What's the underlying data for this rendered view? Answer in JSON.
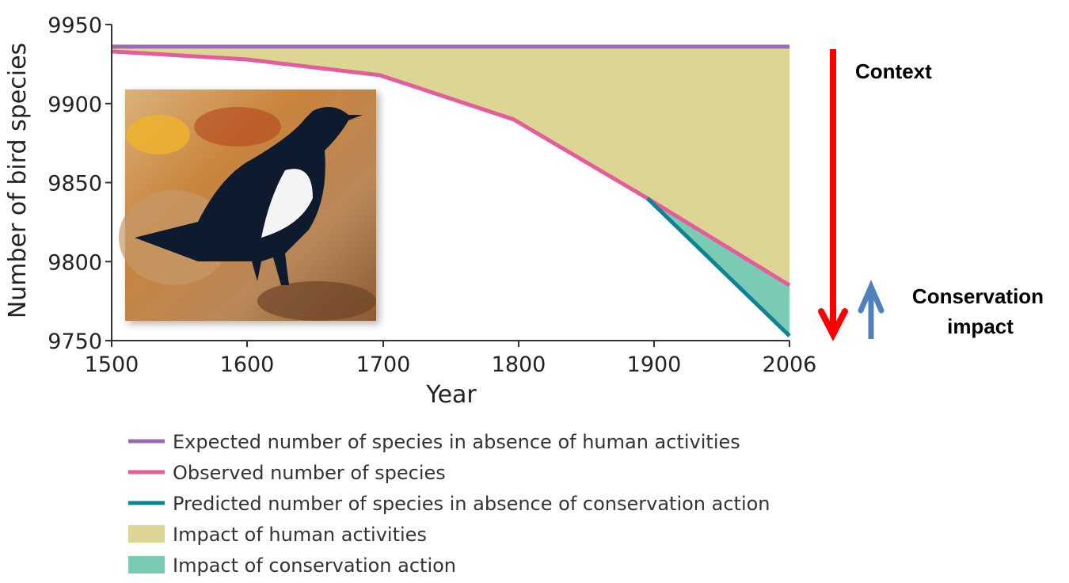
{
  "chart_data": {
    "type": "area",
    "title": "",
    "xlabel": "Year",
    "ylabel": "Number of bird species",
    "xlim": [
      1500,
      2006
    ],
    "ylim": [
      9750,
      9950
    ],
    "x_ticks": [
      1500,
      1600,
      1700,
      1800,
      1900,
      2006
    ],
    "y_ticks": [
      9750,
      9800,
      9850,
      9900,
      9950
    ],
    "grid": false,
    "series": [
      {
        "name": "Expected number of species in absence of human activities",
        "kind": "line",
        "color": "#9b6bb0",
        "x": [
          1500,
          2006
        ],
        "values": [
          9936,
          9936
        ]
      },
      {
        "name": "Observed number of species",
        "kind": "line",
        "color": "#e35d9c",
        "x": [
          1500,
          1600,
          1700,
          1800,
          1900,
          2006
        ],
        "values": [
          9933,
          9928,
          9918,
          9890,
          9840,
          9785
        ]
      },
      {
        "name": "Predicted number of species in absence of conservation action",
        "kind": "line",
        "color": "#0f8394",
        "x": [
          1900,
          2006
        ],
        "values": [
          9840,
          9753
        ]
      },
      {
        "name": "Impact of human activities",
        "kind": "area",
        "color": "#ddd593"
      },
      {
        "name": "Impact of conservation action",
        "kind": "area",
        "color": "#79cbb3"
      }
    ],
    "legend_position": "bottom",
    "annotations": {
      "context": {
        "text": "Context",
        "arrow": "down",
        "color": "#ff0000"
      },
      "conservation": {
        "text_line1": "Conservation",
        "text_line2": "impact",
        "arrow": "up",
        "color": "#4f81bd"
      }
    }
  }
}
